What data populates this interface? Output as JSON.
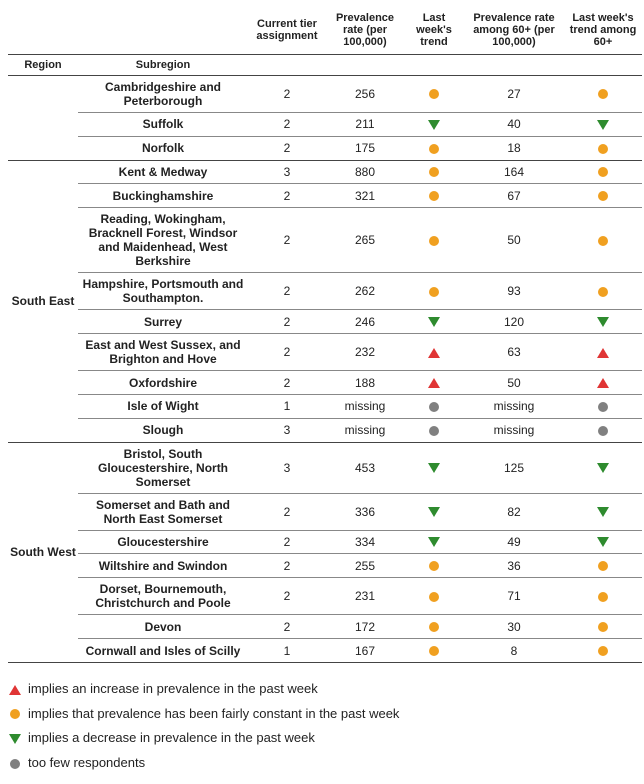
{
  "colors": {
    "up": "#e03535",
    "flat": "#f0a020",
    "down": "#2e8b2e",
    "few": "#808080",
    "border": "#444444",
    "subborder": "#888888",
    "text": "#222222",
    "bg": "#ffffff"
  },
  "columns": {
    "region": "Region",
    "subregion": "Subregion",
    "tier": "Current tier assignment",
    "prev": "Prevalence rate (per 100,000)",
    "trend": "Last week's trend",
    "prev60": "Prevalence rate among 60+ (per 100,000)",
    "trend60": "Last week's trend among 60+"
  },
  "icons": {
    "up": "triangle-up",
    "down": "triangle-down",
    "flat": "circle",
    "few": "circle"
  },
  "regions": [
    {
      "name": "",
      "rows": [
        {
          "sub": "Cambridgeshire and Peterborough",
          "tier": "2",
          "prev": "256",
          "trend": "flat",
          "prev60": "27",
          "trend60": "flat"
        },
        {
          "sub": "Suffolk",
          "tier": "2",
          "prev": "211",
          "trend": "down",
          "prev60": "40",
          "trend60": "down"
        },
        {
          "sub": "Norfolk",
          "tier": "2",
          "prev": "175",
          "trend": "flat",
          "prev60": "18",
          "trend60": "flat"
        }
      ]
    },
    {
      "name": "South East",
      "rows": [
        {
          "sub": "Kent & Medway",
          "tier": "3",
          "prev": "880",
          "trend": "flat",
          "prev60": "164",
          "trend60": "flat"
        },
        {
          "sub": "Buckinghamshire",
          "tier": "2",
          "prev": "321",
          "trend": "flat",
          "prev60": "67",
          "trend60": "flat"
        },
        {
          "sub": "Reading, Wokingham, Bracknell Forest, Windsor and Maidenhead, West Berkshire",
          "tier": "2",
          "prev": "265",
          "trend": "flat",
          "prev60": "50",
          "trend60": "flat"
        },
        {
          "sub": "Hampshire, Portsmouth and Southampton.",
          "tier": "2",
          "prev": "262",
          "trend": "flat",
          "prev60": "93",
          "trend60": "flat"
        },
        {
          "sub": "Surrey",
          "tier": "2",
          "prev": "246",
          "trend": "down",
          "prev60": "120",
          "trend60": "down"
        },
        {
          "sub": "East and West Sussex, and Brighton and Hove",
          "tier": "2",
          "prev": "232",
          "trend": "up",
          "prev60": "63",
          "trend60": "up"
        },
        {
          "sub": "Oxfordshire",
          "tier": "2",
          "prev": "188",
          "trend": "up",
          "prev60": "50",
          "trend60": "up"
        },
        {
          "sub": "Isle of Wight",
          "tier": "1",
          "prev": "missing",
          "trend": "few",
          "prev60": "missing",
          "trend60": "few"
        },
        {
          "sub": "Slough",
          "tier": "3",
          "prev": "missing",
          "trend": "few",
          "prev60": "missing",
          "trend60": "few"
        }
      ]
    },
    {
      "name": "South West",
      "rows": [
        {
          "sub": "Bristol, South Gloucestershire, North Somerset",
          "tier": "3",
          "prev": "453",
          "trend": "down",
          "prev60": "125",
          "trend60": "down"
        },
        {
          "sub": "Somerset and Bath and North East Somerset",
          "tier": "2",
          "prev": "336",
          "trend": "down",
          "prev60": "82",
          "trend60": "down"
        },
        {
          "sub": "Gloucestershire",
          "tier": "2",
          "prev": "334",
          "trend": "down",
          "prev60": "49",
          "trend60": "down"
        },
        {
          "sub": "Wiltshire and Swindon",
          "tier": "2",
          "prev": "255",
          "trend": "flat",
          "prev60": "36",
          "trend60": "flat"
        },
        {
          "sub": "Dorset, Bournemouth, Christchurch and Poole",
          "tier": "2",
          "prev": "231",
          "trend": "flat",
          "prev60": "71",
          "trend60": "flat"
        },
        {
          "sub": "Devon",
          "tier": "2",
          "prev": "172",
          "trend": "flat",
          "prev60": "30",
          "trend60": "flat"
        },
        {
          "sub": "Cornwall and Isles of Scilly",
          "tier": "1",
          "prev": "167",
          "trend": "flat",
          "prev60": "8",
          "trend60": "flat"
        }
      ]
    }
  ],
  "legend": [
    {
      "icon": "up",
      "text": "implies an increase in prevalence in the past week"
    },
    {
      "icon": "flat",
      "text": "implies that prevalence has been fairly constant in the past week"
    },
    {
      "icon": "down",
      "text": "implies a decrease in prevalence in the past week"
    },
    {
      "icon": "few",
      "text": "too few respondents"
    }
  ]
}
